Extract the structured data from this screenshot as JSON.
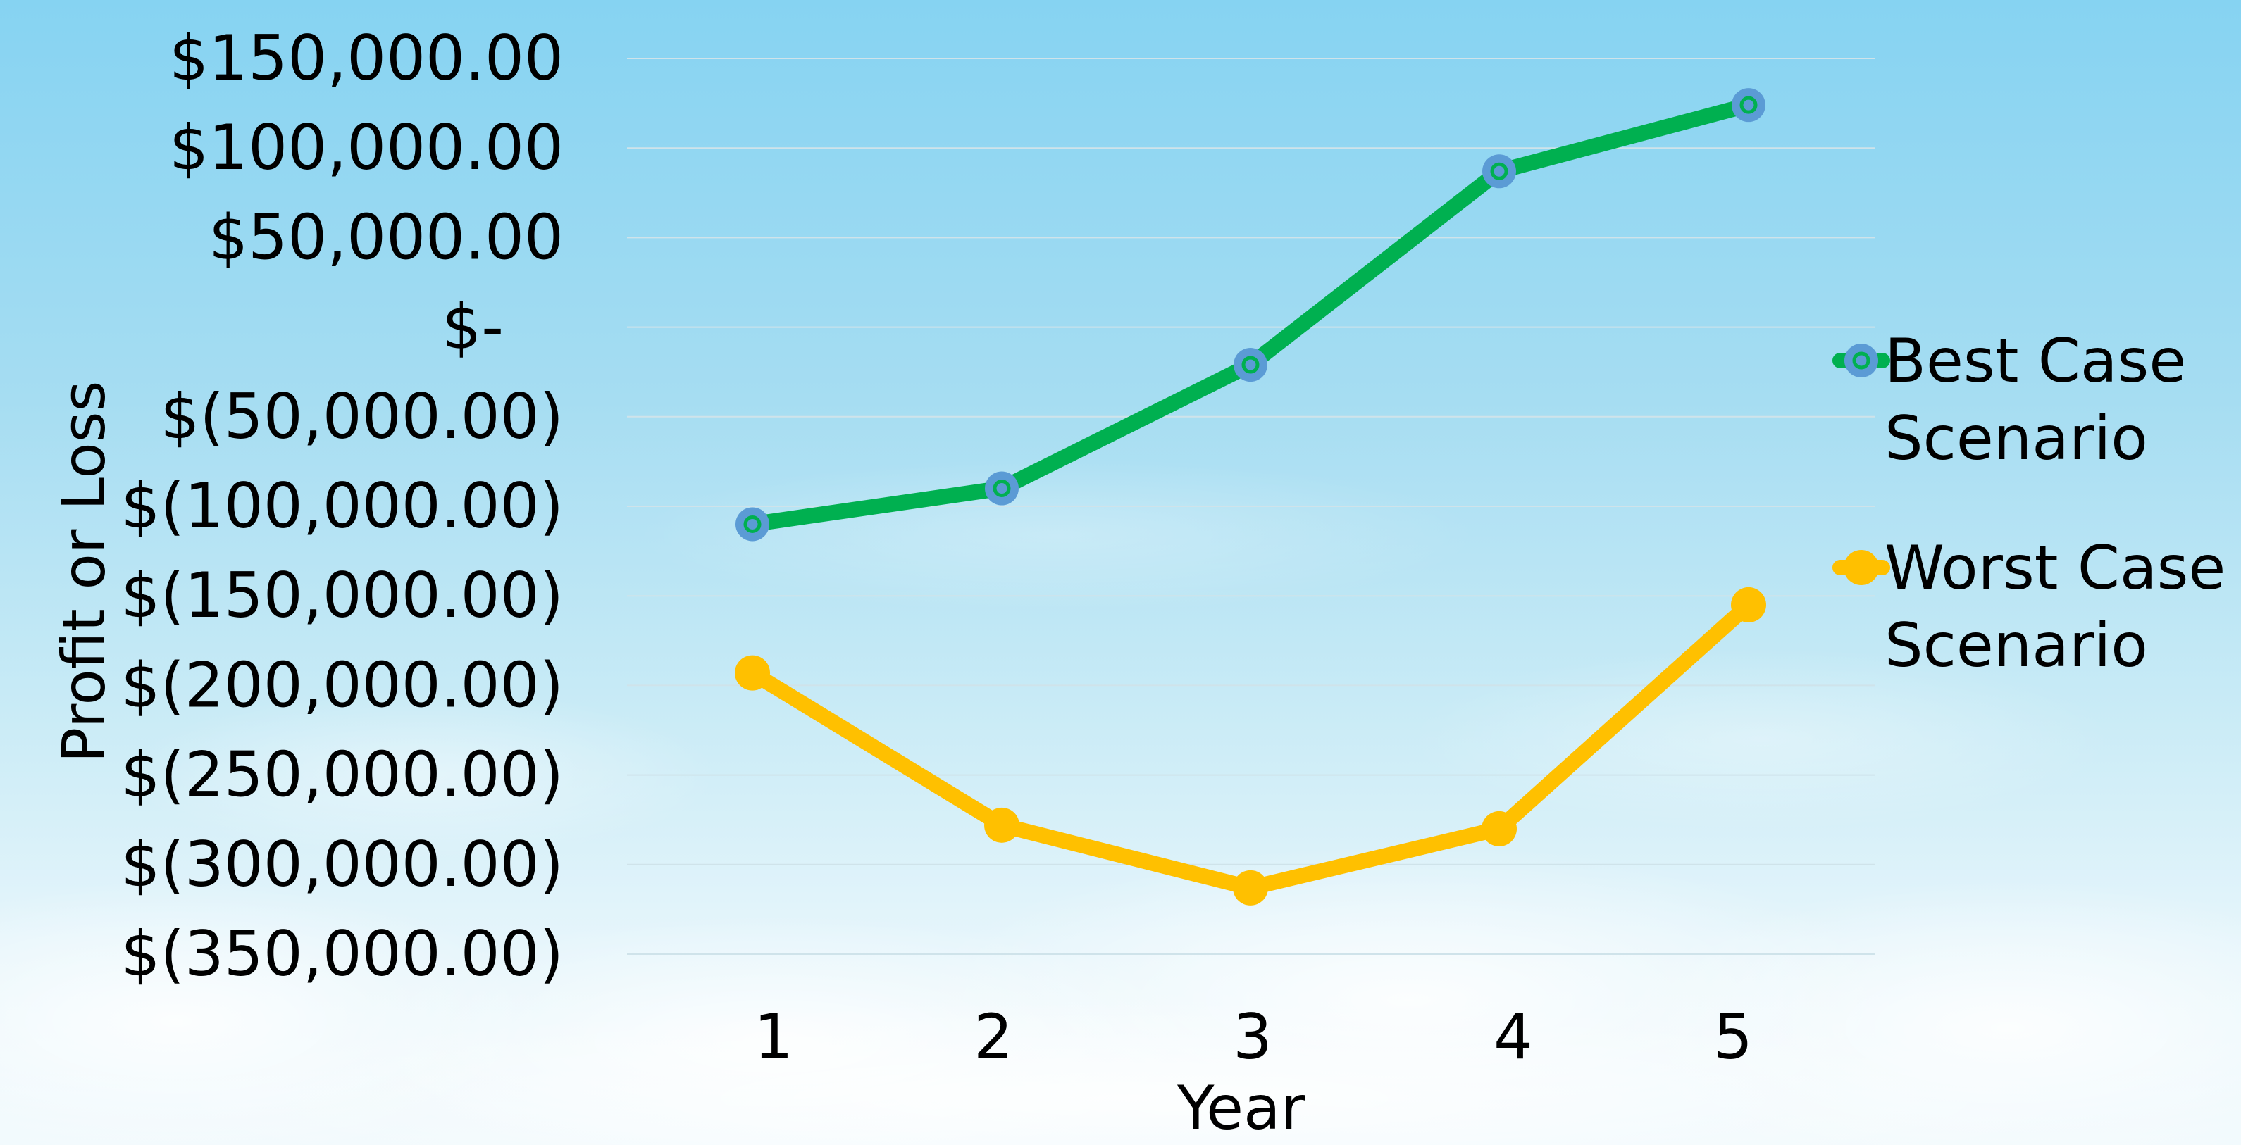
{
  "chart_data": {
    "type": "line",
    "title": "",
    "xlabel": "Year",
    "ylabel": "Profit or Loss",
    "categories": [
      "1",
      "2",
      "3",
      "4",
      "5"
    ],
    "ylim": [
      -350000,
      150000
    ],
    "ytick_values": [
      150000,
      100000,
      50000,
      0,
      -50000,
      -100000,
      -150000,
      -200000,
      -250000,
      -300000,
      -350000
    ],
    "ytick_labels": [
      "$150,000.00",
      "$100,000.00",
      "$50,000.00",
      "$-",
      "$(50,000.00)",
      "$(100,000.00)",
      "$(150,000.00)",
      "$(200,000.00)",
      "$(250,000.00)",
      "$(300,000.00)",
      "$(350,000.00)"
    ],
    "grid": true,
    "legend_position": "right",
    "series": [
      {
        "name": "Best Case Scenario",
        "legend_lines": [
          "Best Case",
          "Scenario"
        ],
        "color": "#00b050",
        "marker_color": "#5b9bd5",
        "values": [
          -110000,
          -90000,
          -21000,
          87000,
          124000
        ]
      },
      {
        "name": "Worst Case Scenario",
        "legend_lines": [
          "Worst Case",
          "Scenario"
        ],
        "color": "#ffc000",
        "marker_color": "#ffc000",
        "values": [
          -193000,
          -278000,
          -313000,
          -280000,
          -155000
        ]
      }
    ]
  }
}
